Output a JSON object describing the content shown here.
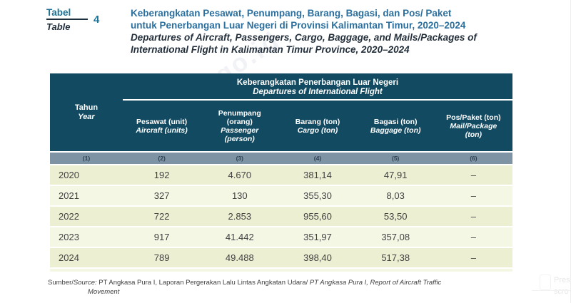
{
  "header": {
    "label_id": "Tabel",
    "label_en": "Table",
    "number": "4",
    "title_id_1": "Keberangkatan Pesawat, Penumpang, Barang, Bagasi, dan Pos/ Paket",
    "title_id_2": "untuk Penerbangan Luar Negeri di Provinsi Kalimantan Timur, 2020–2024",
    "title_en_1": "Departures of Aircraft, Passengers, Cargo, Baggage, and Mails/Packages of",
    "title_en_2": "International Flight in Kalimantan Timur Province, 2020–2024"
  },
  "table": {
    "year_header_id": "Tahun",
    "year_header_en": "Year",
    "group_id": "Keberangkatan Penerbangan Luar Negeri",
    "group_en": "Departures of International Flight",
    "columns": [
      {
        "id": "Pesawat (unit)",
        "en": "Aircraft (units)"
      },
      {
        "id": "Penumpang (orang)",
        "en": "Passenger (person)"
      },
      {
        "id": "Barang (ton)",
        "en": "Cargo (ton)"
      },
      {
        "id": "Bagasi (ton)",
        "en": "Baggage (ton)"
      },
      {
        "id": "Pos/Paket (ton)",
        "en": "Mail/Package (ton)"
      }
    ],
    "column_numbers": [
      "(1)",
      "(2)",
      "(3)",
      "(4)",
      "(5)",
      "(6)"
    ],
    "rows": [
      {
        "year": "2020",
        "values": [
          "192",
          "4.670",
          "381,14",
          "47,91",
          "–"
        ]
      },
      {
        "year": "2021",
        "values": [
          "327",
          "130",
          "355,30",
          "8,03",
          "–"
        ]
      },
      {
        "year": "2022",
        "values": [
          "722",
          "2.853",
          "955,60",
          "53,50",
          "–"
        ]
      },
      {
        "year": "2023",
        "values": [
          "917",
          "41.442",
          "351,97",
          "357,08",
          "–"
        ]
      },
      {
        "year": "2024",
        "values": [
          "789",
          "49.488",
          "398,40",
          "517,38",
          "–"
        ]
      }
    ]
  },
  "chart_data": {
    "type": "table",
    "title": "Keberangkatan Penerbangan Luar Negeri / Departures of International Flight, Kalimantan Timur, 2020–2024",
    "columns": [
      "Tahun/Year",
      "Pesawat (unit)",
      "Penumpang (orang)",
      "Barang (ton)",
      "Bagasi (ton)",
      "Pos/Paket (ton)"
    ],
    "rows": [
      [
        "2020",
        192,
        4670,
        381.14,
        47.91,
        null
      ],
      [
        "2021",
        327,
        130,
        355.3,
        8.03,
        null
      ],
      [
        "2022",
        722,
        2853,
        955.6,
        53.5,
        null
      ],
      [
        "2023",
        917,
        41442,
        351.97,
        357.08,
        null
      ],
      [
        "2024",
        789,
        49488,
        398.4,
        517.38,
        null
      ]
    ]
  },
  "footer": {
    "prefix_id": "Sumber/",
    "prefix_en": "Source:",
    "source_id": " PT Angkasa Pura I, Laporan Pergerakan Lalu Lintas Angkatan Udara/ ",
    "source_en_1": "PT Angkasa Pura I, Report of Aircraft Traffic",
    "source_en_2": "Movement"
  },
  "watermark_text": "kaltim.bps.go.id",
  "overlay": {
    "line1": "Press",
    "line2": "scro"
  },
  "colors": {
    "header_bg": "#124a62",
    "numrow_bg": "#7e93a4",
    "row_odd": "#edefd2",
    "row_even": "#f5f7e5",
    "title_blue": "#2b6f9e",
    "accent_teal": "#1d7296"
  }
}
